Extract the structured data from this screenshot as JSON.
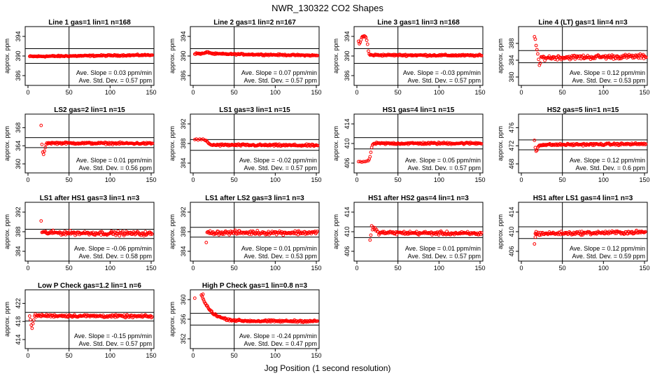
{
  "title": "NWR_130322  CO2 Shapes",
  "xlabel": "Jog Position (1 second resolution)",
  "ylabel": "approx. ppm",
  "slope_prefix": "Ave. Slope = ",
  "slope_unit": " ppm/min",
  "std_prefix": "Ave. Std. Dev. = ",
  "std_unit": " ppm",
  "marker_color": "#ff0000",
  "chart_data": [
    {
      "type": "scatter",
      "title": "Line 1 gas=1 lin=1 n=168",
      "xlim": [
        0,
        150
      ],
      "xticks": [
        0,
        50,
        100,
        150
      ],
      "ylim": [
        384,
        396
      ],
      "yticks": [
        386,
        390,
        394
      ],
      "hlines": [
        391.5,
        388.5
      ],
      "vline": 50,
      "slope": "0.03",
      "std": "0.57",
      "shape": {
        "kind": "line",
        "start_x": 2,
        "end_x": 152,
        "y0": 389.9,
        "y1": 390.2,
        "noise": 0.12
      }
    },
    {
      "type": "scatter",
      "title": "Line 2 gas=1 lin=2 n=167",
      "xlim": [
        0,
        150
      ],
      "xticks": [
        0,
        50,
        100,
        150
      ],
      "ylim": [
        384,
        396
      ],
      "yticks": [
        386,
        390,
        394
      ],
      "hlines": [
        391.5,
        388.5
      ],
      "vline": 50,
      "slope": "0.07",
      "std": "0.57",
      "shape": {
        "kind": "line",
        "start_x": 2,
        "end_x": 152,
        "y0": 390.5,
        "y1": 390.1,
        "noise": 0.12,
        "hump_x": 18,
        "hump_y": 390.8
      }
    },
    {
      "type": "scatter",
      "title": "Line 3 gas=1 lin=3 n=168",
      "xlim": [
        0,
        150
      ],
      "xticks": [
        0,
        50,
        100,
        150
      ],
      "ylim": [
        384,
        396
      ],
      "yticks": [
        386,
        390,
        394
      ],
      "hlines": [
        391.5,
        388.5
      ],
      "vline": 50,
      "slope": "-0.03",
      "std": "0.57",
      "shape": {
        "kind": "line",
        "start_x": 16,
        "end_x": 152,
        "y0": 390.2,
        "y1": 390.1,
        "noise": 0.15,
        "early": [
          [
            2,
            393.0
          ],
          [
            3,
            392.5
          ],
          [
            4,
            392.8
          ],
          [
            5,
            393.3
          ],
          [
            6,
            393.8
          ],
          [
            7,
            394.0
          ],
          [
            8,
            393.9
          ],
          [
            9,
            394.1
          ],
          [
            10,
            394.0
          ],
          [
            11,
            393.8
          ],
          [
            12,
            393.2
          ],
          [
            13,
            392.4
          ],
          [
            14,
            391.0
          ],
          [
            15,
            390.4
          ]
        ]
      }
    },
    {
      "type": "scatter",
      "title": "Line 4 (LT) gas=1 lin=4 n=3",
      "xlim": [
        0,
        150
      ],
      "xticks": [
        0,
        50,
        100,
        150
      ],
      "ylim": [
        378,
        392
      ],
      "yticks": [
        380,
        384,
        388
      ],
      "hlines": [
        386.3,
        383.4
      ],
      "vline": 50,
      "slope": "0.12",
      "std": "0.53",
      "shape": {
        "kind": "line",
        "start_x": 25,
        "end_x": 152,
        "y0": 384.6,
        "y1": 384.9,
        "noise": 0.45,
        "early": [
          [
            16,
            389.6
          ],
          [
            17,
            389.0
          ],
          [
            18,
            387.5
          ],
          [
            19,
            386.5
          ],
          [
            20,
            385.5
          ],
          [
            21,
            384.2
          ],
          [
            22,
            382.8
          ],
          [
            23,
            383.3
          ],
          [
            24,
            384.8
          ]
        ]
      }
    },
    {
      "type": "scatter",
      "title": "LS2 gas=2 lin=1 n=15",
      "xlim": [
        0,
        150
      ],
      "xticks": [
        0,
        50,
        100,
        150
      ],
      "ylim": [
        358,
        371
      ],
      "yticks": [
        360,
        364,
        368
      ],
      "hlines": [
        365.8,
        363.6
      ],
      "vline": 50,
      "slope": "0.01",
      "std": "0.56",
      "shape": {
        "kind": "line",
        "start_x": 23,
        "end_x": 152,
        "y0": 364.6,
        "y1": 364.5,
        "noise": 0.18,
        "early": [
          [
            16,
            368.5
          ],
          [
            17,
            364.3
          ],
          [
            18,
            362.6
          ],
          [
            19,
            362.1
          ],
          [
            20,
            362.8
          ],
          [
            21,
            363.6
          ],
          [
            22,
            364.3
          ]
        ]
      }
    },
    {
      "type": "scatter",
      "title": "LS1 gas=3 lin=1 n=15",
      "xlim": [
        0,
        150
      ],
      "xticks": [
        0,
        50,
        100,
        150
      ],
      "ylim": [
        382,
        394
      ],
      "yticks": [
        384,
        388,
        392
      ],
      "hlines": [
        388.8,
        386.6
      ],
      "vline": 50,
      "slope": "-0.02",
      "std": "0.57",
      "shape": {
        "kind": "line",
        "start_x": 23,
        "end_x": 152,
        "y0": 387.7,
        "y1": 387.6,
        "noise": 0.18,
        "early": [
          [
            2,
            388.8
          ],
          [
            4,
            388.9
          ],
          [
            6,
            388.7
          ],
          [
            8,
            388.9
          ],
          [
            10,
            388.8
          ],
          [
            12,
            388.9
          ],
          [
            14,
            388.7
          ],
          [
            15,
            388.6
          ],
          [
            16,
            388.6
          ],
          [
            17,
            388.4
          ],
          [
            18,
            388.2
          ],
          [
            19,
            388.0
          ],
          [
            20,
            387.9
          ],
          [
            21,
            387.8
          ],
          [
            22,
            387.7
          ]
        ]
      }
    },
    {
      "type": "scatter",
      "title": "HS1 gas=4 lin=1 n=15",
      "xlim": [
        0,
        150
      ],
      "xticks": [
        0,
        50,
        100,
        150
      ],
      "ylim": [
        404,
        416
      ],
      "yticks": [
        406,
        410,
        414
      ],
      "hlines": [
        411.2,
        408.9
      ],
      "vline": 50,
      "slope": "0.05",
      "std": "0.57",
      "shape": {
        "kind": "line",
        "start_x": 23,
        "end_x": 152,
        "y0": 410.0,
        "y1": 410.05,
        "noise": 0.18,
        "early": [
          [
            2,
            406.3
          ],
          [
            4,
            406.3
          ],
          [
            6,
            406.2
          ],
          [
            8,
            406.3
          ],
          [
            10,
            406.3
          ],
          [
            12,
            406.4
          ],
          [
            14,
            406.5
          ],
          [
            15,
            406.8
          ],
          [
            16,
            407.3
          ],
          [
            17,
            408.2
          ],
          [
            18,
            409.2
          ],
          [
            19,
            409.7
          ],
          [
            20,
            409.9
          ],
          [
            21,
            410.0
          ],
          [
            22,
            410.0
          ]
        ]
      }
    },
    {
      "type": "scatter",
      "title": "HS2 gas=5 lin=1 n=15",
      "xlim": [
        0,
        150
      ],
      "xticks": [
        0,
        50,
        100,
        150
      ],
      "ylim": [
        466,
        479
      ],
      "yticks": [
        468,
        472,
        476
      ],
      "hlines": [
        473.3,
        471.1
      ],
      "vline": 50,
      "slope": "0.12",
      "std": "0.6",
      "shape": {
        "kind": "line",
        "start_x": 23,
        "end_x": 152,
        "y0": 472.2,
        "y1": 472.4,
        "noise": 0.2,
        "early": [
          [
            16,
            473.2
          ],
          [
            17,
            471.6
          ],
          [
            18,
            470.8
          ],
          [
            19,
            471.0
          ],
          [
            20,
            471.6
          ],
          [
            21,
            471.9
          ],
          [
            22,
            472.1
          ]
        ]
      }
    },
    {
      "type": "scatter",
      "title": "LS1 after HS1 gas=3 lin=1 n=3",
      "xlim": [
        0,
        150
      ],
      "xticks": [
        0,
        50,
        100,
        150
      ],
      "ylim": [
        382,
        394
      ],
      "yticks": [
        384,
        388,
        392
      ],
      "hlines": [
        388.5,
        386.6
      ],
      "vline": 50,
      "slope": "-0.06",
      "std": "0.58",
      "shape": {
        "kind": "line",
        "start_x": 17,
        "end_x": 152,
        "y0": 387.8,
        "y1": 387.6,
        "noise": 0.35,
        "early": [
          [
            16,
            390.2
          ]
        ]
      }
    },
    {
      "type": "scatter",
      "title": "LS1 after LS2 gas=3 lin=1 n=3",
      "xlim": [
        0,
        150
      ],
      "xticks": [
        0,
        50,
        100,
        150
      ],
      "ylim": [
        382,
        394
      ],
      "yticks": [
        384,
        388,
        392
      ],
      "hlines": [
        388.9,
        386.9
      ],
      "vline": 50,
      "slope": "0.01",
      "std": "0.53",
      "shape": {
        "kind": "line",
        "start_x": 17,
        "end_x": 152,
        "y0": 387.8,
        "y1": 387.8,
        "noise": 0.35,
        "early": [
          [
            16,
            385.8
          ]
        ]
      }
    },
    {
      "type": "scatter",
      "title": "HS1 after HS2 gas=4 lin=1 n=3",
      "xlim": [
        0,
        150
      ],
      "xticks": [
        0,
        50,
        100,
        150
      ],
      "ylim": [
        404,
        416
      ],
      "yticks": [
        406,
        410,
        414
      ],
      "hlines": [
        411.0,
        408.8
      ],
      "vline": 50,
      "slope": "0.01",
      "std": "0.57",
      "shape": {
        "kind": "line",
        "start_x": 25,
        "end_x": 152,
        "y0": 409.8,
        "y1": 409.6,
        "noise": 0.3,
        "early": [
          [
            16,
            408.3
          ],
          [
            17,
            409.3
          ],
          [
            18,
            411.2
          ],
          [
            19,
            410.4
          ],
          [
            20,
            410.9
          ],
          [
            21,
            410.5
          ],
          [
            22,
            410.8
          ],
          [
            23,
            410.2
          ],
          [
            24,
            410.4
          ]
        ]
      }
    },
    {
      "type": "scatter",
      "title": "HS1 after LS1 gas=4 lin=1 n=3",
      "xlim": [
        0,
        150
      ],
      "xticks": [
        0,
        50,
        100,
        150
      ],
      "ylim": [
        404,
        416
      ],
      "yticks": [
        406,
        410,
        414
      ],
      "hlines": [
        411.0,
        408.6
      ],
      "vline": 50,
      "slope": "0.12",
      "std": "0.59",
      "shape": {
        "kind": "line",
        "start_x": 17,
        "end_x": 152,
        "y0": 409.6,
        "y1": 409.9,
        "noise": 0.3,
        "early": [
          [
            16,
            407.5
          ],
          [
            17,
            408.9
          ],
          [
            18,
            410.0
          ]
        ]
      }
    },
    {
      "type": "scatter",
      "title": "Low P Check gas=1.2 lin=1 n=6",
      "xlim": [
        0,
        150
      ],
      "xticks": [
        0,
        50,
        100,
        150
      ],
      "ylim": [
        412,
        425
      ],
      "yticks": [
        414,
        418,
        422
      ],
      "hlines": [
        420.0,
        418.1
      ],
      "vline": 50,
      "slope": "-0.15",
      "std": "0.57",
      "shape": {
        "kind": "line",
        "start_x": 8,
        "end_x": 152,
        "y0": 419.3,
        "y1": 419.1,
        "noise": 0.25,
        "early": [
          [
            2,
            419.2
          ],
          [
            3,
            418.4
          ],
          [
            4,
            417.2
          ],
          [
            5,
            416.5
          ],
          [
            6,
            417.5
          ],
          [
            7,
            418.3
          ]
        ]
      }
    },
    {
      "type": "scatter",
      "title": "High P Check gas=1 lin=0.8 n=3",
      "xlim": [
        0,
        150
      ],
      "xticks": [
        0,
        50,
        100,
        150
      ],
      "ylim": [
        350,
        362
      ],
      "yticks": [
        352,
        356,
        360
      ],
      "hlines": [
        357.2,
        354.8
      ],
      "vline": 50,
      "slope": "-0.24",
      "std": "0.47",
      "shape": {
        "kind": "decay",
        "start_x": 10,
        "end_x": 152,
        "y_start": 361.0,
        "y_end": 355.6,
        "tau": 12,
        "noise": 0.18,
        "early": [
          [
            2,
            360.3
          ],
          [
            12,
            361.1
          ]
        ]
      }
    }
  ]
}
